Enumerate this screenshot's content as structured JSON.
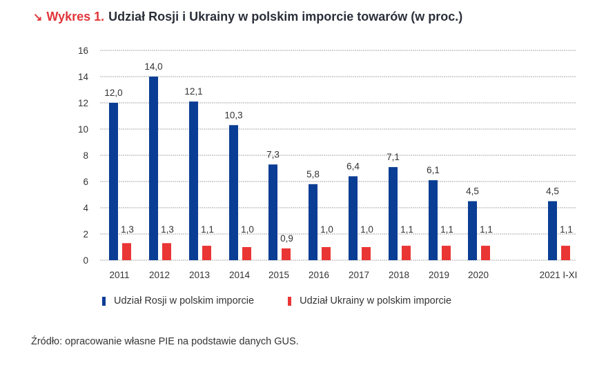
{
  "title": {
    "arrow_icon": "↘",
    "lead": "Wykres 1.",
    "text": "Udział Rosji i Ukrainy w polskim imporcie towarów (w proc.)"
  },
  "colors": {
    "russia": "#0a3d94",
    "ukraine": "#ea3535",
    "accent": "#e0353a",
    "grid": "#aaaaaa"
  },
  "source": "Źródło: opracowanie własne PIE na podstawie danych GUS.",
  "chart_data": {
    "type": "bar",
    "title": "Udział Rosji i Ukrainy w polskim imporcie towarów (w proc.)",
    "xlabel": "",
    "ylabel": "",
    "ylim": [
      0,
      16
    ],
    "yticks": [
      0,
      2,
      4,
      6,
      8,
      10,
      12,
      14,
      16
    ],
    "grid": true,
    "legend_position": "bottom",
    "categories": [
      "2011",
      "2012",
      "2013",
      "2014",
      "2015",
      "2016",
      "2017",
      "2018",
      "2019",
      "2020",
      "2021 I-XI"
    ],
    "series": [
      {
        "name": "Udział Rosji w polskim imporcie",
        "color": "#0a3d94",
        "values": [
          12.0,
          14.0,
          12.1,
          10.3,
          7.3,
          5.8,
          6.4,
          7.1,
          6.1,
          4.5,
          4.5
        ],
        "labels": [
          "12,0",
          "14,0",
          "12,1",
          "10,3",
          "7,3",
          "5,8",
          "6,4",
          "7,1",
          "6,1",
          "4,5",
          "4,5"
        ]
      },
      {
        "name": "Udział Ukrainy w polskim imporcie",
        "color": "#ea3535",
        "values": [
          1.3,
          1.3,
          1.1,
          1.0,
          0.9,
          1.0,
          1.0,
          1.1,
          1.1,
          1.1,
          1.1
        ],
        "labels": [
          "1,3",
          "1,3",
          "1,1",
          "1,0",
          "0,9",
          "1,0",
          "1,0",
          "1,1",
          "1,1",
          "1,1",
          "1,1"
        ]
      }
    ]
  }
}
